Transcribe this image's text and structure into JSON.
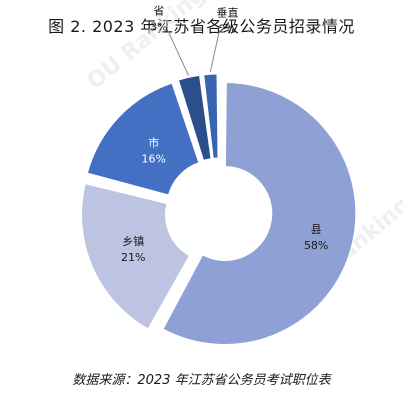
{
  "title": "图 2. 2023 年江苏省各级公务员招录情况",
  "source_note": "数据来源：2023 年江苏省公务员考试职位表",
  "watermark": "OU Ranking.cn",
  "chart_data": {
    "type": "pie",
    "title": "图 2. 2023 年江苏省各级公务员招录情况",
    "categories": [
      "县",
      "乡镇",
      "市",
      "省",
      "垂直"
    ],
    "values": [
      58,
      21,
      16,
      3,
      2
    ],
    "labels": [
      "58%",
      "21%",
      "16%",
      "3%",
      "2%"
    ],
    "colors": [
      "#8fa0d4",
      "#bcc4e2",
      "#4470c4",
      "#2b4f8c",
      "#3765b0"
    ],
    "legend": "none"
  }
}
